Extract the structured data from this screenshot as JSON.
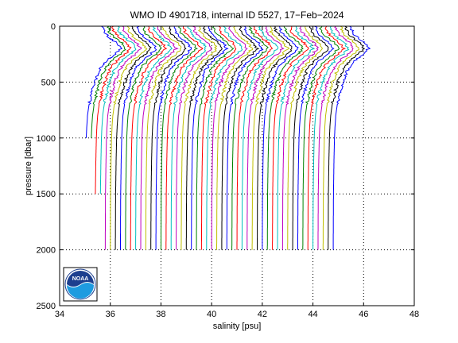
{
  "chart_data": {
    "type": "line",
    "title": "WMO ID 4901718, internal ID 5527, 17−Feb−2024",
    "xlabel": "salinity [psu]",
    "ylabel": "pressure [dbar]",
    "xlim": [
      34,
      48
    ],
    "ylim": [
      2500,
      0
    ],
    "y_reversed": true,
    "grid": true,
    "grid_style": "dotted",
    "xticks": [
      "34",
      "36",
      "38",
      "40",
      "42",
      "44",
      "46",
      "48"
    ],
    "yticks": [
      "0",
      "500",
      "1000",
      "1500",
      "2000",
      "2500"
    ],
    "profile_offset_psu": 0.2,
    "series_colors": [
      "#0000ff",
      "#008000",
      "#ff0000",
      "#00bfbf",
      "#bf00bf",
      "#bfbf00",
      "#000000"
    ],
    "profile_count": 50,
    "deep_salinity": [
      35.0,
      35.2,
      35.4,
      35.6,
      35.8,
      36.0,
      36.2,
      36.4,
      36.6,
      36.8,
      37.0,
      37.2,
      37.4,
      37.6,
      37.8,
      38.0,
      38.2,
      38.4,
      38.6,
      38.8,
      39.0,
      39.2,
      39.4,
      39.6,
      39.8,
      40.0,
      40.2,
      40.4,
      40.6,
      40.8,
      41.0,
      41.2,
      41.4,
      41.6,
      41.8,
      42.0,
      42.2,
      42.4,
      42.6,
      42.8,
      43.0,
      43.2,
      43.4,
      43.6,
      43.8,
      44.0,
      44.2,
      44.4,
      44.6,
      44.8
    ],
    "max_pressure": [
      1000,
      1000,
      1500,
      1500,
      2000,
      2000,
      2000,
      2000,
      2000,
      2000,
      2000,
      2000,
      2000,
      2000,
      2000,
      2000,
      2000,
      2000,
      2000,
      2000,
      2000,
      2000,
      2000,
      2000,
      2000,
      2000,
      2000,
      2000,
      2000,
      2000,
      2000,
      2000,
      2000,
      2000,
      2000,
      2000,
      2000,
      2000,
      2000,
      2000,
      2000,
      2000,
      2000,
      2000,
      2000,
      2000,
      2000,
      2000,
      2000,
      2000
    ],
    "profile_shape": {
      "pressure": [
        0,
        50,
        100,
        150,
        200,
        250,
        300,
        350,
        400,
        500,
        600,
        700,
        800,
        900,
        1000,
        1200,
        1500,
        2000
      ],
      "salinity_anomaly": [
        0.7,
        0.75,
        0.95,
        1.25,
        1.4,
        1.2,
        0.9,
        0.7,
        0.55,
        0.38,
        0.26,
        0.16,
        0.1,
        0.07,
        0.05,
        0.03,
        0.01,
        0.0
      ]
    }
  },
  "logo": {
    "text": "NOAA",
    "colors": {
      "sky": "#1d3f8f",
      "wave": "#1e9be0",
      "ring": "#ffffff"
    }
  }
}
